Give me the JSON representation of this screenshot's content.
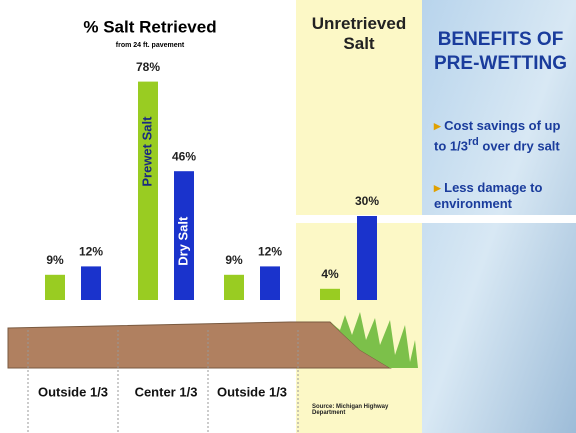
{
  "chart_data": [
    {
      "type": "bar",
      "title": "% Salt Retrieved",
      "subtitle": "from 24 ft. pavement",
      "categories": [
        "Outside 1/3",
        "Center 1/3",
        "Outside 1/3"
      ],
      "series": [
        {
          "name": "Prewet Salt",
          "color": "#99cc22",
          "values": [
            9,
            78,
            9
          ],
          "value_labels": [
            "9%",
            "78%",
            "9%"
          ]
        },
        {
          "name": "Dry Salt",
          "color": "#1a33cc",
          "values": [
            12,
            46,
            12
          ],
          "value_labels": [
            "12%",
            "46%",
            "12%"
          ]
        }
      ]
    },
    {
      "type": "bar",
      "title": "Unretrieved Salt",
      "values": [
        4,
        30
      ],
      "value_labels": [
        "4%",
        "30%"
      ],
      "colors": [
        "#99cc22",
        "#1a33cc"
      ],
      "source": "Source: Michigan Highway Department"
    }
  ],
  "benefits": {
    "title": "BENEFITS OF PRE-WETTING",
    "items": [
      {
        "text": "Cost savings of up to 1/3",
        "sup": "rd",
        "tail": " over dry salt"
      },
      {
        "text": "Less damage to environment"
      }
    ]
  }
}
